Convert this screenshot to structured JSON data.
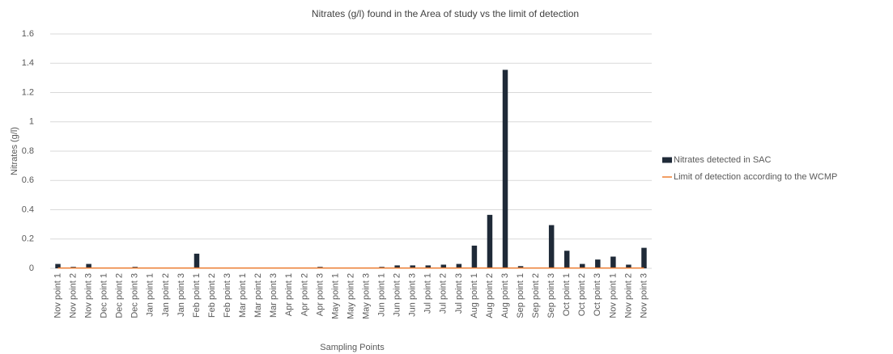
{
  "chart_data": {
    "type": "bar",
    "title": "Nitrates (g/l) found in the Area of study vs the limit of detection",
    "x_label": "Sampling Points",
    "y_label": "Nitrates (g/l)",
    "categories": [
      "Nov point 1",
      "Nov point 2",
      "Nov point 3",
      "Dec point 1",
      "Dec point 2",
      "Dec point 3",
      "Jan point 1",
      "Jan point 2",
      "Jan point 3",
      "Feb point 1",
      "Feb point 2",
      "Feb point 3",
      "Mar point 1",
      "Mar point 2",
      "Mar point 3",
      "Apr point 1",
      "Apr point 2",
      "Apr point 3",
      "May point 1",
      "May point 2",
      "May point 3",
      "Jun point 1",
      "Jun point 2",
      "Jun point 3",
      "Jul point 1",
      "Jul point 2",
      "Jul point 3",
      "Aug point 1",
      "Aug point 2",
      "Aug point 3",
      "Sep point 1",
      "Sep point 2",
      "Sep point 3",
      "Oct point 1",
      "Oct point 2",
      "Oct point 3",
      "Nov point 1",
      "Nov point 2",
      "Nov point 3"
    ],
    "series": [
      {
        "name": "Nitrates detected in SAC",
        "type": "bar",
        "color": "#1f2a38",
        "values": [
          0.03,
          0.01,
          0.03,
          0.005,
          0.005,
          0.01,
          0,
          0,
          0,
          0.1,
          0.005,
          0.005,
          0,
          0,
          0,
          0.005,
          0,
          0.01,
          0,
          0,
          0.005,
          0.01,
          0.02,
          0.02,
          0.02,
          0.025,
          0.03,
          0.155,
          0.365,
          1.355,
          0.015,
          0.005,
          0.295,
          0.12,
          0.03,
          0.06,
          0.08,
          0.025,
          0.14
        ]
      },
      {
        "name": "Limit of detection according to the WCMP",
        "type": "line",
        "color": "#ed7d31",
        "values": [
          0.002,
          0.002,
          0.002,
          0.002,
          0.002,
          0.002,
          0.002,
          0.002,
          0.002,
          0.002,
          0.002,
          0.002,
          0.002,
          0.002,
          0.002,
          0.002,
          0.002,
          0.002,
          0.002,
          0.002,
          0.002,
          0.002,
          0.002,
          0.002,
          0.002,
          0.002,
          0.002,
          0.002,
          0.002,
          0.002,
          0.002,
          0.002,
          0.002,
          0.002,
          0.002,
          0.002,
          0.002,
          0.002,
          0.002
        ]
      }
    ],
    "ylim": [
      0,
      1.6
    ],
    "yticks": [
      0,
      0.2,
      0.4,
      0.6,
      0.8,
      1,
      1.2,
      1.4,
      1.6
    ],
    "grid": true,
    "legend": "right"
  }
}
